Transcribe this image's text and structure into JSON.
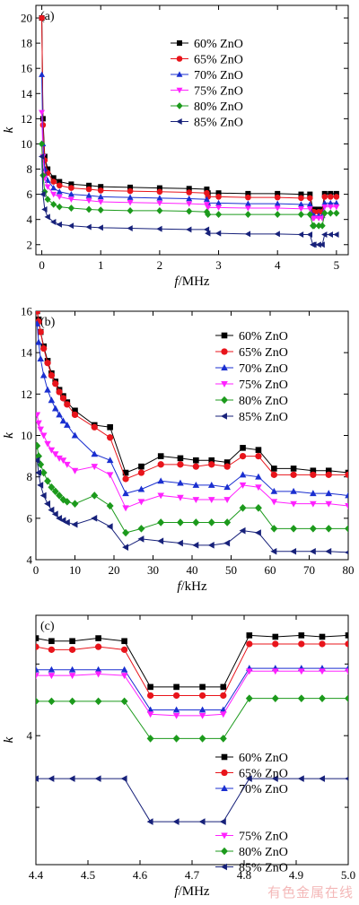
{
  "colors": {
    "60% ZnO": "#000000",
    "65% ZnO": "#e8141b",
    "70% ZnO": "#1a2fd0",
    "75% ZnO": "#ff22ff",
    "80% ZnO": "#1c9a1c",
    "85% ZnO": "#17217a"
  },
  "markers": {
    "60% ZnO": "square",
    "65% ZnO": "circle",
    "70% ZnO": "triangle-up",
    "75% ZnO": "triangle-down",
    "80% ZnO": "diamond",
    "85% ZnO": "triangle-left"
  },
  "watermark": "有色金属在线",
  "chart_data": [
    {
      "type": "line",
      "panel_label": "(a)",
      "xlabel": "f/MHz",
      "ylabel": "k",
      "xlim": [
        -0.1,
        5.2
      ],
      "ylim": [
        1.2,
        21
      ],
      "xticks": [
        0,
        1,
        2,
        3,
        4,
        5
      ],
      "yticks": [
        2,
        4,
        6,
        8,
        10,
        12,
        14,
        16,
        18,
        20
      ],
      "legend_position": "top-right",
      "x": [
        0.0,
        0.02,
        0.05,
        0.1,
        0.2,
        0.3,
        0.5,
        0.8,
        1.0,
        1.5,
        2.0,
        2.5,
        2.8,
        2.82,
        3.0,
        3.5,
        4.0,
        4.4,
        4.55,
        4.6,
        4.62,
        4.7,
        4.76,
        4.8,
        4.9,
        5.0
      ],
      "series": [
        {
          "name": "60% ZnO",
          "values": [
            20.0,
            12.0,
            9.0,
            8.0,
            7.3,
            7.0,
            6.8,
            6.7,
            6.6,
            6.55,
            6.5,
            6.45,
            6.4,
            6.1,
            6.1,
            6.05,
            6.05,
            6.0,
            6.0,
            4.8,
            4.8,
            4.8,
            4.8,
            6.05,
            6.05,
            6.05
          ]
        },
        {
          "name": "65% ZnO",
          "values": [
            20.0,
            11.5,
            8.7,
            7.7,
            7.0,
            6.7,
            6.5,
            6.4,
            6.3,
            6.25,
            6.2,
            6.15,
            6.1,
            5.8,
            5.8,
            5.75,
            5.75,
            5.7,
            5.7,
            4.6,
            4.6,
            4.6,
            4.6,
            5.8,
            5.8,
            5.8
          ]
        },
        {
          "name": "70% ZnO",
          "values": [
            15.5,
            10.0,
            8.0,
            7.1,
            6.5,
            6.2,
            6.0,
            5.9,
            5.8,
            5.75,
            5.7,
            5.65,
            5.6,
            5.3,
            5.3,
            5.25,
            5.25,
            5.2,
            5.2,
            4.3,
            4.3,
            4.3,
            4.3,
            5.3,
            5.3,
            5.3
          ]
        },
        {
          "name": "75% ZnO",
          "values": [
            12.5,
            9.0,
            7.3,
            6.6,
            6.0,
            5.8,
            5.6,
            5.5,
            5.4,
            5.35,
            5.3,
            5.25,
            5.2,
            4.95,
            4.95,
            4.9,
            4.9,
            4.85,
            4.85,
            4.1,
            4.1,
            4.1,
            4.1,
            5.0,
            5.0,
            5.0
          ]
        },
        {
          "name": "80% ZnO",
          "values": [
            10.0,
            7.5,
            6.2,
            5.6,
            5.2,
            5.0,
            4.9,
            4.8,
            4.75,
            4.7,
            4.7,
            4.65,
            4.6,
            4.4,
            4.4,
            4.4,
            4.4,
            4.4,
            4.4,
            3.5,
            3.5,
            3.5,
            3.5,
            4.5,
            4.5,
            4.5
          ]
        },
        {
          "name": "85% ZnO",
          "values": [
            9.0,
            6.0,
            4.8,
            4.2,
            3.8,
            3.6,
            3.5,
            3.4,
            3.35,
            3.3,
            3.25,
            3.2,
            3.2,
            2.9,
            2.9,
            2.85,
            2.85,
            2.8,
            2.8,
            2.0,
            2.0,
            2.0,
            2.0,
            2.8,
            2.8,
            2.8
          ]
        }
      ]
    },
    {
      "type": "line",
      "panel_label": "(b)",
      "xlabel": "f/kHz",
      "ylabel": "k",
      "xlim": [
        0,
        80
      ],
      "ylim": [
        4,
        16
      ],
      "xticks": [
        0,
        10,
        20,
        30,
        40,
        50,
        60,
        70,
        80
      ],
      "yticks": [
        4,
        6,
        8,
        10,
        12,
        14,
        16
      ],
      "legend_position": "top-right",
      "x": [
        0.3,
        0.7,
        1.2,
        2,
        3,
        4,
        5,
        6,
        7,
        8,
        10,
        15,
        19,
        23,
        27,
        32,
        37,
        41,
        45,
        49,
        53,
        57,
        61,
        66,
        71,
        75,
        80
      ],
      "series": [
        {
          "name": "60% ZnO",
          "values": [
            16.0,
            15.6,
            15.0,
            14.3,
            13.6,
            13.0,
            12.6,
            12.2,
            11.9,
            11.6,
            11.2,
            10.5,
            10.4,
            8.2,
            8.5,
            9.0,
            8.9,
            8.8,
            8.8,
            8.7,
            9.4,
            9.3,
            8.4,
            8.4,
            8.3,
            8.3,
            8.2
          ]
        },
        {
          "name": "65% ZnO",
          "values": [
            16.0,
            15.5,
            15.0,
            14.2,
            13.5,
            12.9,
            12.5,
            12.1,
            11.8,
            11.5,
            11.0,
            10.4,
            9.9,
            7.9,
            8.2,
            8.6,
            8.6,
            8.5,
            8.6,
            8.5,
            9.0,
            9.0,
            8.1,
            8.1,
            8.1,
            8.1,
            8.1
          ]
        },
        {
          "name": "70% ZnO",
          "values": [
            15.4,
            14.5,
            13.7,
            12.9,
            12.2,
            11.7,
            11.3,
            11.0,
            10.7,
            10.5,
            10.0,
            9.1,
            8.8,
            7.2,
            7.4,
            7.8,
            7.7,
            7.6,
            7.6,
            7.5,
            8.1,
            8.0,
            7.3,
            7.3,
            7.2,
            7.2,
            7.1
          ]
        },
        {
          "name": "75% ZnO",
          "values": [
            11.0,
            10.6,
            10.3,
            10.0,
            9.6,
            9.3,
            9.1,
            8.9,
            8.8,
            8.6,
            8.3,
            8.5,
            8.1,
            6.5,
            6.8,
            7.1,
            7.0,
            6.9,
            6.9,
            6.9,
            7.6,
            7.5,
            6.8,
            6.7,
            6.7,
            6.7,
            6.6
          ]
        },
        {
          "name": "80% ZnO",
          "values": [
            9.5,
            9.0,
            8.6,
            8.2,
            7.8,
            7.5,
            7.3,
            7.1,
            6.9,
            6.8,
            6.7,
            7.1,
            6.6,
            5.3,
            5.5,
            5.8,
            5.8,
            5.8,
            5.8,
            5.8,
            6.5,
            6.5,
            5.5,
            5.5,
            5.5,
            5.5,
            5.5
          ]
        },
        {
          "name": "85% ZnO",
          "values": [
            8.8,
            8.2,
            7.6,
            7.1,
            6.7,
            6.4,
            6.2,
            6.0,
            5.9,
            5.8,
            5.7,
            6.0,
            5.6,
            4.6,
            5.0,
            4.9,
            4.8,
            4.7,
            4.7,
            4.8,
            5.4,
            5.3,
            4.4,
            4.4,
            4.4,
            4.4,
            4.35
          ]
        }
      ]
    },
    {
      "type": "line",
      "panel_label": "(c)",
      "xlabel": "f/MHz",
      "ylabel": "k",
      "xlim": [
        4.4,
        5.0
      ],
      "ylim": [
        3.55,
        4.42
      ],
      "xticks": [
        "4.4",
        "4.5",
        "4.6",
        "4.7",
        "4.8",
        "4.9",
        "5.0"
      ],
      "yticks": [
        "4"
      ],
      "legend_position": "right",
      "x": [
        4.4,
        4.43,
        4.47,
        4.52,
        4.57,
        4.62,
        4.67,
        4.72,
        4.76,
        4.81,
        4.86,
        4.91,
        4.95,
        5.0
      ],
      "series": [
        {
          "name": "60% ZnO",
          "values": [
            4.34,
            4.33,
            4.33,
            4.34,
            4.33,
            4.17,
            4.17,
            4.17,
            4.17,
            4.35,
            4.345,
            4.35,
            4.345,
            4.35
          ]
        },
        {
          "name": "65% ZnO",
          "values": [
            4.31,
            4.3,
            4.3,
            4.31,
            4.3,
            4.14,
            4.14,
            4.14,
            4.14,
            4.32,
            4.32,
            4.32,
            4.32,
            4.32
          ]
        },
        {
          "name": "70% ZnO",
          "values": [
            4.23,
            4.23,
            4.23,
            4.23,
            4.23,
            4.09,
            4.09,
            4.09,
            4.09,
            4.235,
            4.235,
            4.235,
            4.235,
            4.235
          ]
        },
        {
          "name": "75% ZnO",
          "values": [
            4.21,
            4.21,
            4.21,
            4.215,
            4.21,
            4.075,
            4.07,
            4.07,
            4.075,
            4.225,
            4.225,
            4.225,
            4.225,
            4.225
          ]
        },
        {
          "name": "80% ZnO",
          "values": [
            4.12,
            4.12,
            4.12,
            4.12,
            4.12,
            3.99,
            3.99,
            3.99,
            3.99,
            4.13,
            4.13,
            4.13,
            4.13,
            4.13
          ]
        },
        {
          "name": "85% ZnO",
          "values": [
            3.85,
            3.85,
            3.85,
            3.85,
            3.85,
            3.7,
            3.7,
            3.7,
            3.7,
            3.85,
            3.85,
            3.85,
            3.85,
            3.85
          ]
        }
      ]
    }
  ]
}
